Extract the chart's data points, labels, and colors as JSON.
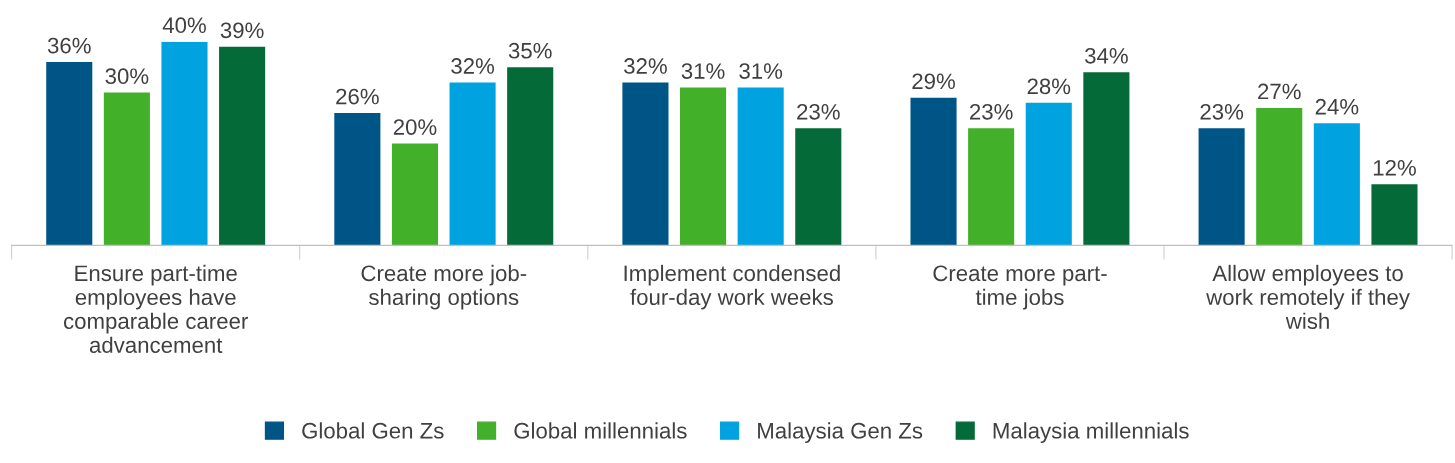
{
  "chart_data": {
    "type": "bar",
    "categories": [
      "Ensure part-time\nemployees have\ncomparable career\nadvancement",
      "Create more job-\nsharing options",
      "Implement condensed\nfour-day work weeks",
      "Create more part-\ntime jobs",
      "Allow employees to\nwork remotely if they\nwish"
    ],
    "series": [
      {
        "name": "Global Gen Zs",
        "color": "#005587",
        "values": [
          36,
          26,
          32,
          29,
          23
        ],
        "value_labels": [
          "36%",
          "26%",
          "32%",
          "29%",
          "23%"
        ]
      },
      {
        "name": "Global millennials",
        "color": "#43b02a",
        "values": [
          30,
          20,
          31,
          23,
          27
        ],
        "value_labels": [
          "30%",
          "20%",
          "31%",
          "23%",
          "27%"
        ]
      },
      {
        "name": "Malaysia Gen Zs",
        "color": "#00a3e0",
        "values": [
          40,
          32,
          31,
          28,
          24
        ],
        "value_labels": [
          "40%",
          "32%",
          "31%",
          "28%",
          "24%"
        ]
      },
      {
        "name": "Malaysia millennials",
        "color": "#046a38",
        "values": [
          39,
          35,
          23,
          34,
          12
        ],
        "value_labels": [
          "39%",
          "35%",
          "23%",
          "34%",
          "12%"
        ]
      }
    ],
    "legend": "bottom",
    "grid": false
  }
}
